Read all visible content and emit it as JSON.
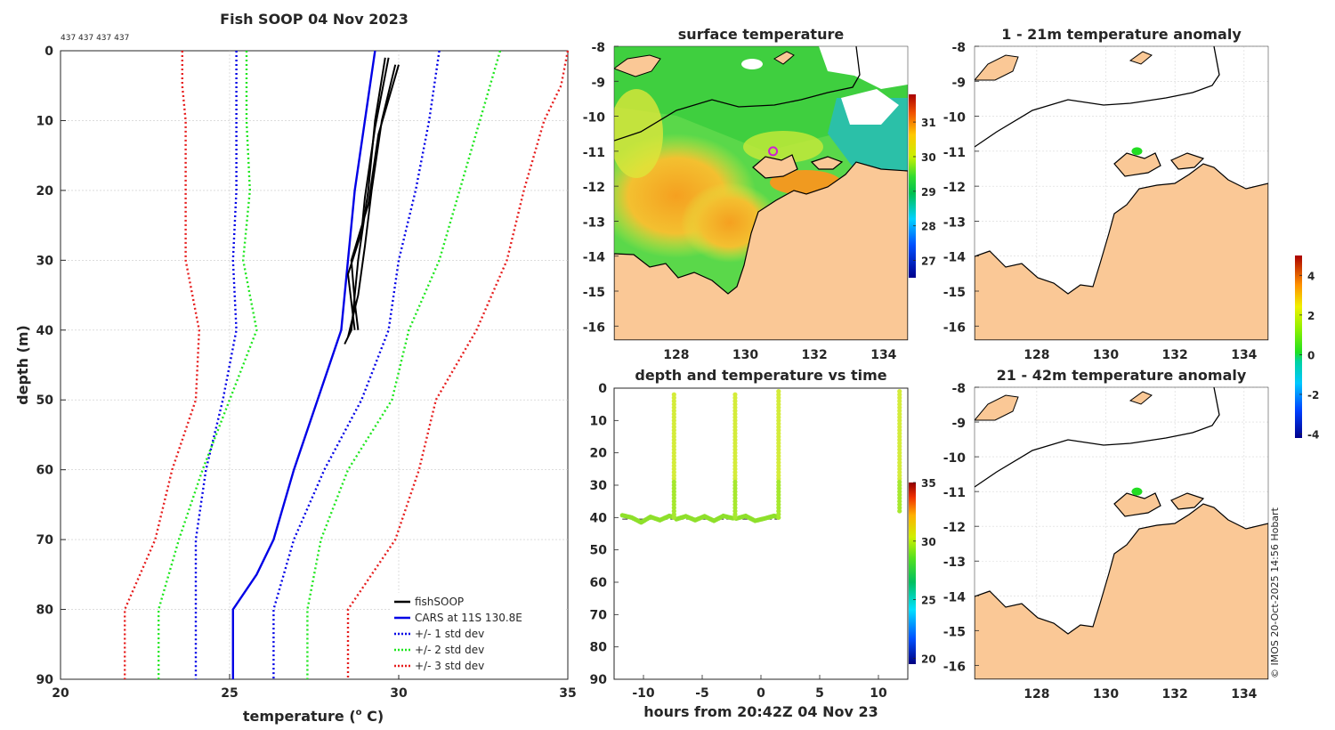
{
  "credit": "© IMOS 20-Oct-2025 14:56 Hobart",
  "chart_data": [
    {
      "type": "line",
      "title": "Fish SOOP 04 Nov 2023",
      "annotation": "437 437 437 437",
      "xlabel": "temperature",
      "xlabel_unit": "(",
      "xlabel_sup": "o",
      "xlabel_tail": " C)",
      "ylabel": "depth (m)",
      "xlim": [
        20,
        35
      ],
      "ylim": [
        90,
        0
      ],
      "xticks": [
        20,
        25,
        30,
        35
      ],
      "yticks": [
        0,
        10,
        20,
        30,
        40,
        50,
        60,
        70,
        80,
        90
      ],
      "grid": true,
      "legend_position": "bottom-right",
      "legend": [
        "fishSOOP",
        "CARS at 11S 130.8E",
        "+/- 1 std dev",
        "+/- 2 std dev",
        "+/- 3 std dev"
      ],
      "series": [
        {
          "name": "CARS at 11S 130.8E",
          "color": "#0000e6",
          "dash": "",
          "depth": [
            0,
            10,
            20,
            30,
            40,
            50,
            60,
            70,
            75,
            80,
            90
          ],
          "temp": [
            29.3,
            29.0,
            28.7,
            28.5,
            28.3,
            27.6,
            26.9,
            26.3,
            25.8,
            25.1,
            25.1
          ]
        },
        {
          "name": "+/- 1 std dev",
          "color": "#0000e6",
          "dash": "2 3",
          "depth": [
            0,
            10,
            20,
            30,
            40,
            50,
            60,
            70,
            80,
            90
          ],
          "temp": [
            25.2,
            25.2,
            25.2,
            25.1,
            25.2,
            24.8,
            24.3,
            24.0,
            24.0,
            24.0
          ]
        },
        {
          "name": "+/- 1 std dev",
          "color": "#0000e6",
          "dash": "2 3",
          "depth": [
            0,
            10,
            20,
            30,
            40,
            50,
            60,
            70,
            80,
            90
          ],
          "temp": [
            31.2,
            30.9,
            30.5,
            30.0,
            29.7,
            28.9,
            27.8,
            26.9,
            26.3,
            26.3
          ]
        },
        {
          "name": "+/- 2 std dev",
          "color": "#1ee61e",
          "dash": "2 3",
          "depth": [
            0,
            10,
            20,
            30,
            40,
            50,
            60,
            70,
            80,
            90
          ],
          "temp": [
            25.5,
            25.5,
            25.6,
            25.4,
            25.8,
            25.0,
            24.2,
            23.5,
            22.9,
            22.9
          ]
        },
        {
          "name": "+/- 2 std dev",
          "color": "#1ee61e",
          "dash": "2 3",
          "depth": [
            0,
            10,
            20,
            30,
            40,
            50,
            60,
            70,
            80,
            90
          ],
          "temp": [
            33.0,
            32.4,
            31.8,
            31.2,
            30.3,
            29.8,
            28.5,
            27.7,
            27.3,
            27.3
          ]
        },
        {
          "name": "+/- 3 std dev",
          "color": "#e61e1e",
          "dash": "2 3",
          "depth": [
            0,
            5,
            10,
            20,
            30,
            40,
            50,
            60,
            70,
            80,
            90
          ],
          "temp": [
            23.6,
            23.6,
            23.7,
            23.7,
            23.7,
            24.1,
            24.0,
            23.3,
            22.8,
            21.9,
            21.9
          ]
        },
        {
          "name": "+/- 3 std dev",
          "color": "#e61e1e",
          "dash": "2 3",
          "depth": [
            0,
            5,
            10,
            20,
            30,
            40,
            50,
            60,
            70,
            80,
            90
          ],
          "temp": [
            35.0,
            34.8,
            34.3,
            33.7,
            33.2,
            32.3,
            31.1,
            30.6,
            29.9,
            28.5,
            28.5
          ]
        },
        {
          "name": "fishSOOP",
          "color": "#000000",
          "dash": "",
          "depth": [
            1,
            10,
            20,
            30,
            40,
            42
          ],
          "temp": [
            29.6,
            29.3,
            29.1,
            28.8,
            28.6,
            28.4
          ]
        },
        {
          "name": "fishSOOP",
          "color": "#000000",
          "dash": "",
          "depth": [
            2,
            10,
            20,
            28,
            35,
            41
          ],
          "temp": [
            29.9,
            29.5,
            29.2,
            29.0,
            28.8,
            28.5
          ]
        },
        {
          "name": "fishSOOP",
          "color": "#000000",
          "dash": "",
          "depth": [
            1,
            11,
            21,
            26,
            32,
            40
          ],
          "temp": [
            29.7,
            29.3,
            29.0,
            28.9,
            28.5,
            28.7
          ]
        },
        {
          "name": "fishSOOP",
          "color": "#000000",
          "dash": "",
          "depth": [
            2,
            12,
            22,
            30,
            36,
            40
          ],
          "temp": [
            30.0,
            29.4,
            29.1,
            28.6,
            28.7,
            28.8
          ]
        }
      ]
    },
    {
      "type": "heatmap",
      "title": "surface temperature",
      "xlim": [
        126.2,
        134.7
      ],
      "ylim": [
        -16.4,
        -8
      ],
      "xticks": [
        128,
        130,
        132,
        134
      ],
      "yticks": [
        -8,
        -9,
        -10,
        -11,
        -12,
        -13,
        -14,
        -15,
        -16
      ],
      "colorbar_ticks": [
        27,
        28,
        29,
        30,
        31
      ],
      "colorbar_range": [
        26.5,
        31.8
      ],
      "marker": {
        "lon": 130.8,
        "lat": -11.0
      }
    },
    {
      "type": "scatter",
      "title": "1 - 21m temperature anomaly",
      "xlim": [
        126.2,
        134.7
      ],
      "ylim": [
        -16.4,
        -8
      ],
      "xticks": [
        128,
        130,
        132,
        134
      ],
      "yticks": [
        -8,
        -9,
        -10,
        -11,
        -12,
        -13,
        -14,
        -15,
        -16
      ],
      "points": [
        {
          "lon": 130.9,
          "lat": -11.0,
          "anomaly": 0.3
        }
      ]
    },
    {
      "type": "scatter",
      "title": "21 - 42m temperature anomaly",
      "xlim": [
        126.2,
        134.7
      ],
      "ylim": [
        -16.4,
        -8
      ],
      "xticks": [
        128,
        130,
        132,
        134
      ],
      "yticks": [
        -8,
        -9,
        -10,
        -11,
        -12,
        -13,
        -14,
        -15,
        -16
      ],
      "points": [
        {
          "lon": 130.9,
          "lat": -11.0,
          "anomaly": 0.3
        }
      ],
      "colorbar_ticks": [
        -4,
        -2,
        0,
        2,
        4
      ],
      "colorbar_range": [
        -4.2,
        5
      ]
    },
    {
      "type": "scatter",
      "title": "depth and temperature vs time",
      "xlabel": "hours from 20:42Z 04 Nov 23",
      "xlim": [
        -12.5,
        12.5
      ],
      "ylim": [
        90,
        0
      ],
      "xticks": [
        -10,
        -5,
        0,
        5,
        10
      ],
      "yticks": [
        0,
        10,
        20,
        30,
        40,
        50,
        60,
        70,
        80,
        90
      ],
      "colorbar_ticks": [
        20,
        25,
        30,
        35
      ],
      "colorbar_range": [
        19.5,
        35
      ],
      "bottom_line_depth": 40.5,
      "bottom_tracks": [
        {
          "t": [
            -11.8,
            -11,
            -10.2,
            -9.4,
            -8.6,
            -7.8,
            -7.3
          ],
          "d": [
            39.3,
            40.0,
            41.5,
            39.8,
            40.8,
            39.5,
            40.0
          ]
        },
        {
          "t": [
            -7.2,
            -6.4,
            -5.6,
            -4.8,
            -4,
            -3.2,
            -2.4,
            -2.2
          ],
          "d": [
            40.5,
            39.6,
            40.8,
            39.6,
            41.0,
            39.5,
            40.2,
            40.0
          ]
        },
        {
          "t": [
            -2.1,
            -1.3,
            -0.5,
            0.3,
            1.1,
            1.5
          ],
          "d": [
            40.3,
            39.5,
            41.0,
            40.3,
            39.5,
            39.8
          ]
        }
      ],
      "profile_times": [
        -7.4,
        -2.2,
        1.5,
        11.8
      ],
      "profile_top_depth": [
        2,
        2,
        1,
        1
      ],
      "profile_bottom_depth": [
        40,
        40,
        40,
        38
      ],
      "profile_temp": 29.5
    }
  ]
}
